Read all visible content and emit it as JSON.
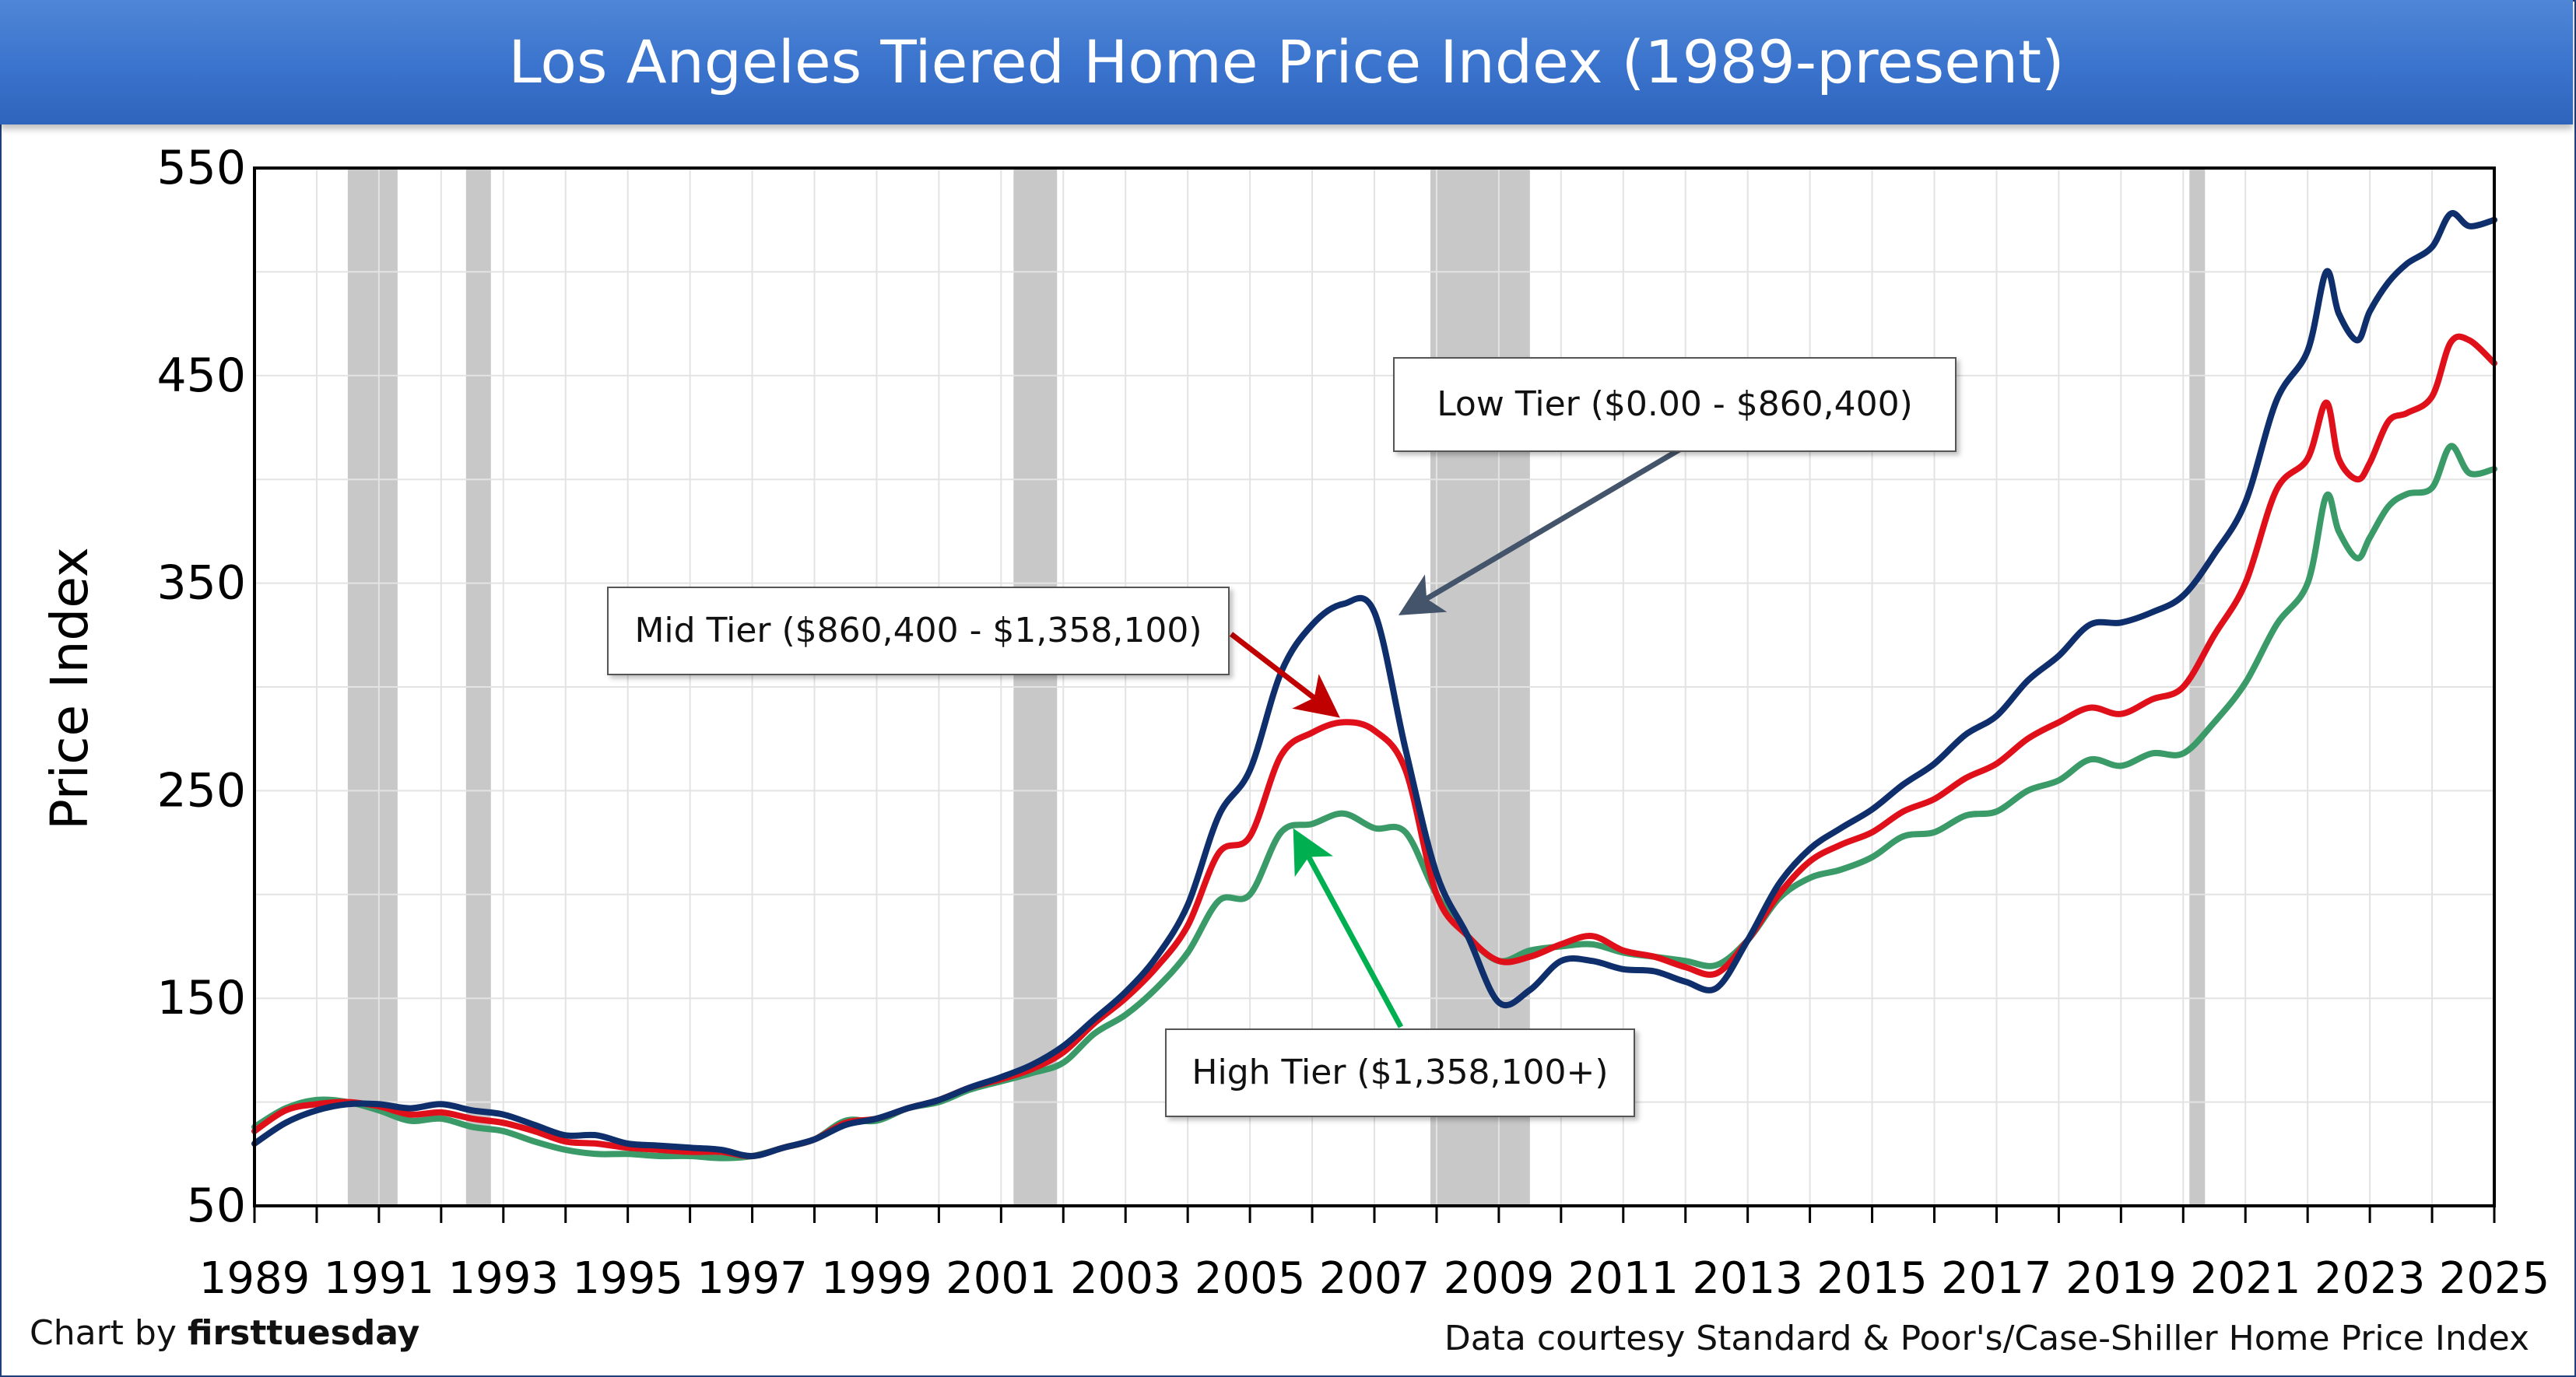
{
  "title": "Los Angeles Tiered Home Price Index (1989-present)",
  "credit_left_prefix": "Chart by ",
  "credit_left_brand": "firsttuesday",
  "credit_right": "Data courtesy Standard & Poor's/Case-Shiller Home Price Index",
  "annotations": {
    "low": "Low Tier ($0.00 - $860,400)",
    "mid": "Mid Tier ($860,400 - $1,358,100)",
    "high": "High Tier ($1,358,100+)"
  },
  "colors": {
    "low": "#0e2f6b",
    "mid": "#e0101a",
    "high": "#3a9a68",
    "recession": "#c8c8c8",
    "arrow_low": "#44546a",
    "arrow_mid": "#c00000",
    "arrow_high": "#00b050"
  },
  "chart_data": {
    "type": "line",
    "title": "Los Angeles Tiered Home Price Index (1989-present)",
    "xlabel": "",
    "ylabel": "Price Index",
    "xlim": [
      1989,
      2025
    ],
    "ylim": [
      50,
      550
    ],
    "yticks": [
      50,
      150,
      250,
      350,
      450,
      550
    ],
    "xticks": [
      "1989",
      "1991",
      "1993",
      "1995",
      "1997",
      "1999",
      "2001",
      "2003",
      "2005",
      "2007",
      "2009",
      "2011",
      "2013",
      "2015",
      "2017",
      "2019",
      "2021",
      "2023",
      "2025"
    ],
    "grid": true,
    "recession_bands": [
      [
        1990.5,
        1991.3
      ],
      [
        1992.4,
        1992.8
      ],
      [
        2001.2,
        2001.9
      ],
      [
        2007.9,
        2009.5
      ],
      [
        2020.1,
        2020.35
      ]
    ],
    "series": [
      {
        "key": "low",
        "x": [
          1989,
          1989.5,
          1990,
          1990.5,
          1991,
          1991.5,
          1992,
          1992.5,
          1993,
          1993.5,
          1994,
          1994.5,
          1995,
          1995.5,
          1996,
          1996.5,
          1997,
          1997.5,
          1998,
          1998.5,
          1999,
          1999.5,
          2000,
          2000.5,
          2001,
          2001.5,
          2002,
          2002.5,
          2003,
          2003.5,
          2004,
          2004.5,
          2005,
          2005.5,
          2006,
          2006.5,
          2007,
          2007.5,
          2008,
          2008.5,
          2009,
          2009.5,
          2010,
          2010.5,
          2011,
          2011.5,
          2012,
          2012.5,
          2013,
          2013.5,
          2014,
          2014.5,
          2015,
          2015.5,
          2016,
          2016.5,
          2017,
          2017.5,
          2018,
          2018.5,
          2019,
          2019.5,
          2020,
          2020.5,
          2021,
          2021.5,
          2022,
          2022.3,
          2022.5,
          2022.8,
          2023,
          2023.3,
          2023.6,
          2024,
          2024.3,
          2024.6,
          2025
        ],
        "y": [
          80,
          90,
          96,
          99,
          99,
          97,
          99,
          96,
          94,
          89,
          84,
          84,
          80,
          79,
          78,
          77,
          74,
          78,
          82,
          89,
          92,
          97,
          101,
          107,
          112,
          118,
          127,
          140,
          153,
          170,
          195,
          238,
          260,
          307,
          330,
          340,
          336,
          270,
          210,
          180,
          148,
          154,
          168,
          168,
          164,
          163,
          158,
          155,
          178,
          205,
          222,
          232,
          241,
          253,
          263,
          277,
          286,
          303,
          315,
          330,
          331,
          336,
          344,
          364,
          389,
          438,
          462,
          500,
          480,
          467,
          481,
          495,
          504,
          512,
          528,
          522,
          525
        ]
      },
      {
        "key": "mid",
        "x": [
          1989,
          1989.5,
          1990,
          1990.5,
          1991,
          1991.5,
          1992,
          1992.5,
          1993,
          1993.5,
          1994,
          1994.5,
          1995,
          1995.5,
          1996,
          1996.5,
          1997,
          1997.5,
          1998,
          1998.5,
          1999,
          1999.5,
          2000,
          2000.5,
          2001,
          2001.5,
          2002,
          2002.5,
          2003,
          2003.5,
          2004,
          2004.5,
          2005,
          2005.5,
          2006,
          2006.5,
          2007,
          2007.5,
          2008,
          2008.5,
          2009,
          2009.5,
          2010,
          2010.5,
          2011,
          2011.5,
          2012,
          2012.5,
          2013,
          2013.5,
          2014,
          2014.5,
          2015,
          2015.5,
          2016,
          2016.5,
          2017,
          2017.5,
          2018,
          2018.5,
          2019,
          2019.5,
          2020,
          2020.5,
          2021,
          2021.5,
          2022,
          2022.3,
          2022.5,
          2022.8,
          2023,
          2023.3,
          2023.6,
          2024,
          2024.3,
          2024.6,
          2025
        ],
        "y": [
          86,
          96,
          99,
          100,
          98,
          94,
          95,
          92,
          90,
          86,
          81,
          80,
          78,
          77,
          76,
          76,
          74,
          78,
          82,
          90,
          92,
          97,
          101,
          107,
          111,
          116,
          124,
          138,
          150,
          165,
          185,
          220,
          228,
          267,
          278,
          283,
          279,
          260,
          200,
          180,
          168,
          170,
          176,
          180,
          173,
          170,
          165,
          162,
          178,
          200,
          216,
          224,
          230,
          240,
          246,
          256,
          263,
          275,
          283,
          290,
          287,
          294,
          300,
          325,
          350,
          395,
          410,
          437,
          410,
          400,
          408,
          428,
          432,
          440,
          466,
          467,
          456
        ]
      },
      {
        "key": "high",
        "x": [
          1989,
          1989.5,
          1990,
          1990.5,
          1991,
          1991.5,
          1992,
          1992.5,
          1993,
          1993.5,
          1994,
          1994.5,
          1995,
          1995.5,
          1996,
          1996.5,
          1997,
          1997.5,
          1998,
          1998.5,
          1999,
          1999.5,
          2000,
          2000.5,
          2001,
          2001.5,
          2002,
          2002.5,
          2003,
          2003.5,
          2004,
          2004.5,
          2005,
          2005.5,
          2006,
          2006.5,
          2007,
          2007.5,
          2008,
          2008.5,
          2009,
          2009.5,
          2010,
          2010.5,
          2011,
          2011.5,
          2012,
          2012.5,
          2013,
          2013.5,
          2014,
          2014.5,
          2015,
          2015.5,
          2016,
          2016.5,
          2017,
          2017.5,
          2018,
          2018.5,
          2019,
          2019.5,
          2020,
          2020.5,
          2021,
          2021.5,
          2022,
          2022.3,
          2022.5,
          2022.8,
          2023,
          2023.3,
          2023.6,
          2024,
          2024.3,
          2024.6,
          2025
        ],
        "y": [
          88,
          97,
          101,
          100,
          96,
          91,
          92,
          88,
          86,
          81,
          77,
          75,
          75,
          74,
          74,
          73,
          74,
          78,
          82,
          91,
          91,
          97,
          100,
          106,
          110,
          114,
          119,
          133,
          142,
          155,
          172,
          197,
          200,
          230,
          234,
          239,
          232,
          230,
          200,
          180,
          168,
          173,
          175,
          176,
          172,
          170,
          168,
          166,
          178,
          198,
          208,
          212,
          218,
          228,
          230,
          238,
          240,
          250,
          255,
          265,
          262,
          268,
          268,
          283,
          302,
          330,
          350,
          392,
          375,
          362,
          372,
          387,
          393,
          396,
          416,
          403,
          405
        ]
      }
    ]
  }
}
